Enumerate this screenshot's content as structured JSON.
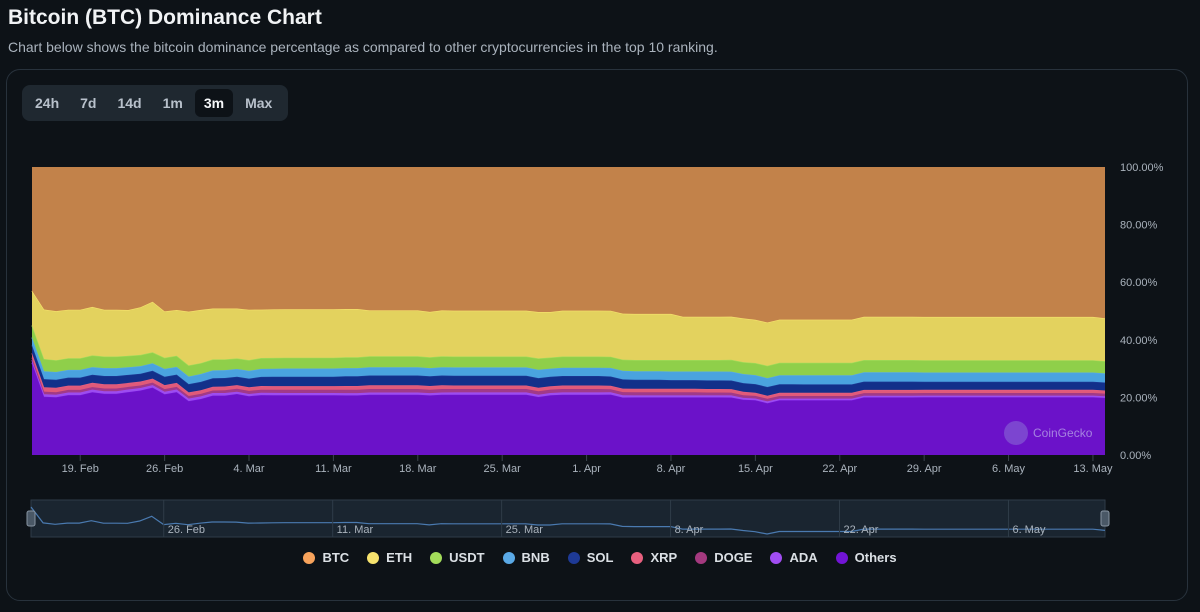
{
  "header": {
    "title": "Bitcoin (BTC) Dominance Chart",
    "subtitle": "Chart below shows the bitcoin dominance percentage as compared to other cryptocurrencies in the top 10 ranking."
  },
  "range_tabs": [
    {
      "label": "24h",
      "active": false
    },
    {
      "label": "7d",
      "active": false
    },
    {
      "label": "14d",
      "active": false
    },
    {
      "label": "1m",
      "active": false
    },
    {
      "label": "3m",
      "active": true
    },
    {
      "label": "Max",
      "active": false
    }
  ],
  "watermark": "CoinGecko",
  "chart_data": {
    "type": "area",
    "stacked": true,
    "title": "",
    "xlabel": "",
    "ylabel": "",
    "ylim": [
      0,
      100
    ],
    "y_ticks": [
      0,
      20,
      40,
      60,
      80,
      100
    ],
    "y_tick_labels": [
      "0.00%",
      "20.00%",
      "40.00%",
      "60.00%",
      "80.00%",
      "100.00%"
    ],
    "y_axis_side": "right",
    "grid": false,
    "legend_position": "bottom-center",
    "x_tick_labels": [
      "19. Feb",
      "26. Feb",
      "4. Mar",
      "11. Mar",
      "18. Mar",
      "25. Mar",
      "1. Apr",
      "8. Apr",
      "15. Apr",
      "22. Apr",
      "29. Apr",
      "6. May",
      "13. May"
    ],
    "navigator_tick_labels": [
      "26. Feb",
      "11. Mar",
      "25. Mar",
      "8. Apr",
      "22. Apr",
      "6. May"
    ],
    "x_start": "2024-02-15",
    "x_end": "2024-05-14",
    "series": [
      {
        "name": "Others",
        "color": "#6b12c9",
        "values": [
          32,
          20,
          20,
          21,
          21,
          22,
          21,
          21,
          22,
          23,
          24,
          21,
          22,
          19,
          20,
          21,
          21,
          22,
          21,
          21,
          21,
          21,
          21,
          21,
          21,
          21,
          21,
          21,
          21,
          21,
          21,
          21,
          21,
          21,
          21,
          21,
          21,
          21,
          21,
          21,
          21,
          21,
          20,
          21,
          21,
          21,
          21,
          21,
          21,
          20,
          20,
          20,
          20,
          20,
          20,
          20,
          20,
          20,
          20,
          19,
          19,
          18,
          19,
          19,
          19,
          19,
          19,
          19,
          19,
          20,
          20,
          20,
          20,
          20,
          20,
          20,
          20,
          20,
          20,
          20,
          20,
          20,
          20,
          20,
          20,
          20,
          20,
          20,
          20,
          20
        ]
      },
      {
        "name": "ADA",
        "color": "#9b4cf0",
        "values": [
          0.9,
          0.9,
          0.9,
          0.9,
          0.9,
          0.9,
          0.9,
          0.9,
          0.9,
          0.9,
          0.9,
          0.9,
          0.9,
          0.9,
          0.9,
          0.9,
          0.9,
          0.8,
          0.8,
          0.8,
          0.8,
          0.8,
          0.8,
          0.8,
          0.8,
          0.8,
          0.8,
          0.8,
          0.8,
          0.8,
          0.8,
          0.8,
          0.8,
          0.8,
          0.8,
          0.8,
          0.8,
          0.8,
          0.8,
          0.8,
          0.8,
          0.8,
          0.8,
          0.8,
          0.8,
          0.8,
          0.8,
          0.8,
          0.8,
          0.8,
          0.7,
          0.7,
          0.7,
          0.7,
          0.7,
          0.7,
          0.7,
          0.7,
          0.7,
          0.6,
          0.6,
          0.6,
          0.6,
          0.6,
          0.6,
          0.6,
          0.6,
          0.6,
          0.6,
          0.6,
          0.6,
          0.6,
          0.6,
          0.6,
          0.6,
          0.6,
          0.6,
          0.6,
          0.6,
          0.6,
          0.6,
          0.6,
          0.6,
          0.6,
          0.6,
          0.6,
          0.6,
          0.6,
          0.6,
          0.6
        ]
      },
      {
        "name": "DOGE",
        "color": "#a03a8a",
        "values": [
          0.9,
          0.9,
          0.9,
          0.9,
          0.9,
          0.9,
          0.9,
          0.9,
          0.9,
          0.9,
          0.9,
          0.9,
          0.9,
          0.9,
          0.9,
          0.9,
          1.0,
          1.1,
          1.1,
          1.1,
          1.1,
          1.1,
          1.1,
          1.1,
          1.1,
          1.1,
          1.2,
          1.2,
          1.2,
          1.2,
          1.2,
          1.2,
          1.2,
          1.2,
          1.2,
          1.2,
          1.2,
          1.2,
          1.2,
          1.2,
          1.2,
          1.2,
          1.2,
          1.2,
          1.2,
          1.2,
          1.2,
          1.2,
          1.1,
          1.1,
          1.1,
          1.1,
          1.1,
          1.1,
          1.1,
          1.1,
          1.0,
          1.0,
          1.0,
          0.9,
          0.9,
          0.9,
          0.9,
          0.9,
          0.9,
          0.9,
          0.9,
          0.9,
          0.9,
          0.9,
          0.9,
          0.9,
          0.9,
          0.9,
          0.9,
          0.9,
          0.9,
          0.9,
          0.9,
          0.9,
          0.9,
          0.9,
          0.9,
          0.9,
          0.9,
          0.9,
          0.9,
          0.9,
          0.9,
          0.9
        ]
      },
      {
        "name": "XRP",
        "color": "#e05a7a",
        "values": [
          1.5,
          1.5,
          1.5,
          1.5,
          1.5,
          1.5,
          1.5,
          1.5,
          1.4,
          1.4,
          1.4,
          1.4,
          1.4,
          1.3,
          1.3,
          1.3,
          1.3,
          1.3,
          1.3,
          1.3,
          1.3,
          1.3,
          1.3,
          1.3,
          1.3,
          1.3,
          1.3,
          1.3,
          1.3,
          1.3,
          1.3,
          1.3,
          1.3,
          1.3,
          1.3,
          1.2,
          1.2,
          1.2,
          1.2,
          1.2,
          1.2,
          1.2,
          1.2,
          1.2,
          1.2,
          1.2,
          1.2,
          1.2,
          1.2,
          1.2,
          1.2,
          1.2,
          1.2,
          1.2,
          1.2,
          1.2,
          1.2,
          1.2,
          1.2,
          1.2,
          1.1,
          1.1,
          1.1,
          1.1,
          1.1,
          1.1,
          1.1,
          1.1,
          1.1,
          1.1,
          1.1,
          1.1,
          1.1,
          1.1,
          1.1,
          1.1,
          1.1,
          1.1,
          1.1,
          1.1,
          1.1,
          1.1,
          1.1,
          1.1,
          1.1,
          1.1,
          1.1,
          1.1,
          1.1,
          1.1
        ]
      },
      {
        "name": "SOL",
        "color": "#12308a",
        "values": [
          2.8,
          2.8,
          2.8,
          2.8,
          2.8,
          2.8,
          2.8,
          2.8,
          2.8,
          2.8,
          2.8,
          2.9,
          2.9,
          2.9,
          3.0,
          3.0,
          3.0,
          3.0,
          3.1,
          3.2,
          3.3,
          3.3,
          3.3,
          3.3,
          3.3,
          3.3,
          3.4,
          3.4,
          3.4,
          3.4,
          3.4,
          3.4,
          3.4,
          3.4,
          3.4,
          3.4,
          3.4,
          3.4,
          3.4,
          3.4,
          3.4,
          3.4,
          3.3,
          3.3,
          3.3,
          3.3,
          3.3,
          3.3,
          3.2,
          3.2,
          3.1,
          3.1,
          3.1,
          3.0,
          3.0,
          3.0,
          3.0,
          3.0,
          3.0,
          3.0,
          3.0,
          3.0,
          3.0,
          3.0,
          2.9,
          2.9,
          2.9,
          2.9,
          2.9,
          2.9,
          2.9,
          2.9,
          2.9,
          2.9,
          2.8,
          2.8,
          2.8,
          2.8,
          2.8,
          2.8,
          2.8,
          2.8,
          2.8,
          2.8,
          2.8,
          2.8,
          2.8,
          2.8,
          2.8,
          2.8
        ]
      },
      {
        "name": "BNB",
        "color": "#4aa3df",
        "values": [
          2.7,
          2.7,
          2.7,
          2.7,
          2.7,
          2.7,
          2.7,
          2.7,
          2.7,
          2.7,
          2.7,
          2.7,
          2.7,
          2.7,
          2.8,
          2.8,
          2.8,
          2.8,
          2.8,
          2.8,
          2.8,
          2.9,
          2.9,
          2.9,
          2.9,
          2.9,
          2.9,
          2.9,
          2.9,
          2.9,
          2.9,
          2.9,
          2.9,
          2.9,
          2.9,
          2.9,
          2.9,
          2.9,
          2.9,
          2.9,
          2.9,
          2.9,
          2.9,
          2.9,
          2.9,
          2.9,
          2.9,
          2.9,
          3.0,
          3.0,
          3.0,
          3.0,
          3.0,
          3.0,
          3.0,
          3.0,
          3.1,
          3.1,
          3.1,
          3.1,
          3.1,
          3.1,
          3.1,
          3.1,
          3.2,
          3.2,
          3.2,
          3.2,
          3.2,
          3.2,
          3.2,
          3.2,
          3.2,
          3.2,
          3.2,
          3.2,
          3.2,
          3.2,
          3.2,
          3.2,
          3.2,
          3.2,
          3.2,
          3.2,
          3.2,
          3.2,
          3.2,
          3.2,
          3.2,
          3.2
        ]
      },
      {
        "name": "USDT",
        "color": "#8fcf4a",
        "values": [
          4.2,
          4.2,
          4.1,
          4.1,
          4.1,
          4.1,
          4.0,
          4.0,
          4.0,
          4.0,
          3.9,
          3.9,
          3.9,
          3.9,
          3.9,
          3.9,
          3.8,
          3.8,
          3.8,
          3.8,
          3.8,
          3.8,
          3.8,
          3.8,
          3.8,
          3.8,
          3.8,
          3.8,
          3.8,
          3.8,
          3.8,
          3.8,
          3.8,
          3.8,
          3.8,
          3.8,
          3.8,
          3.8,
          3.8,
          3.8,
          3.8,
          3.8,
          3.9,
          3.9,
          3.9,
          3.9,
          3.9,
          3.9,
          3.9,
          3.9,
          3.9,
          3.9,
          3.9,
          4.0,
          4.0,
          4.0,
          4.0,
          4.0,
          4.1,
          4.1,
          4.2,
          4.3,
          4.3,
          4.3,
          4.3,
          4.3,
          4.3,
          4.3,
          4.3,
          4.3,
          4.3,
          4.3,
          4.3,
          4.3,
          4.3,
          4.3,
          4.3,
          4.3,
          4.3,
          4.3,
          4.3,
          4.3,
          4.3,
          4.3,
          4.3,
          4.3,
          4.3,
          4.3,
          4.3,
          4.3
        ]
      },
      {
        "name": "ETH",
        "color": "#e3d25e",
        "values": [
          12,
          17,
          17,
          17,
          17,
          17,
          16,
          16,
          16,
          17,
          18,
          16,
          16,
          19,
          19,
          18,
          18,
          18,
          18,
          17,
          17,
          17,
          17,
          17,
          17,
          17,
          17,
          17,
          16,
          16,
          16,
          16,
          16,
          16,
          16,
          16,
          16,
          16,
          16,
          16,
          16,
          16,
          16,
          16,
          16,
          16,
          16,
          16,
          16,
          16,
          16,
          16,
          16,
          16,
          15,
          15,
          15,
          15,
          15,
          15,
          15,
          15,
          15,
          15,
          15,
          15,
          15,
          15,
          15,
          15,
          15,
          15,
          15,
          15,
          15,
          15,
          15,
          15,
          15,
          15,
          15,
          15,
          15,
          15,
          15,
          15,
          15,
          15,
          15,
          15
        ]
      },
      {
        "name": "BTC",
        "color": "#c2824a",
        "values": [
          43,
          49,
          50,
          50,
          50,
          49,
          49,
          49,
          50,
          50,
          48,
          50,
          50,
          51,
          51,
          50,
          50,
          51,
          51,
          50,
          50,
          50,
          50,
          50,
          50,
          50,
          50,
          50,
          50,
          50,
          50,
          50,
          50,
          51,
          50,
          50,
          50,
          50,
          50,
          50,
          50,
          50,
          50,
          51,
          50,
          50,
          50,
          50,
          50,
          51,
          51,
          51,
          51,
          51,
          52,
          52,
          52,
          52,
          52,
          52,
          53,
          54,
          53,
          53,
          53,
          53,
          53,
          53,
          53,
          52,
          52,
          52,
          52,
          52,
          52,
          52,
          52,
          52,
          52,
          52,
          52,
          52,
          52,
          52,
          52,
          52,
          52,
          52,
          52,
          53
        ]
      }
    ],
    "legend_order": [
      "BTC",
      "ETH",
      "USDT",
      "BNB",
      "SOL",
      "XRP",
      "DOGE",
      "ADA",
      "Others"
    ],
    "legend_colors": {
      "BTC": "#f7a35c",
      "ETH": "#f7e36e",
      "USDT": "#a3dc5a",
      "BNB": "#5aa9e6",
      "SOL": "#1e3a96",
      "XRP": "#e8607f",
      "DOGE": "#a4397f",
      "ADA": "#a14df2",
      "Others": "#7214d6"
    }
  }
}
